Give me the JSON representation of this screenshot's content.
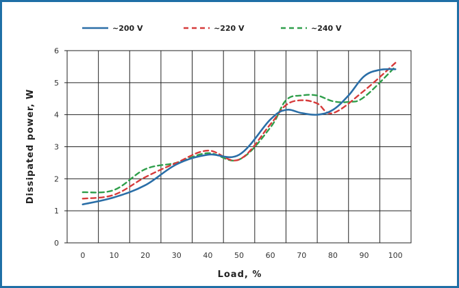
{
  "chart_data": {
    "type": "line",
    "title": "",
    "xlabel": "Load, %",
    "ylabel": "Dissipated power, W",
    "xlim": [
      0,
      100
    ],
    "ylim": [
      0,
      6
    ],
    "xticks": [
      0,
      10,
      20,
      30,
      40,
      50,
      60,
      70,
      80,
      90,
      100
    ],
    "yticks": [
      0,
      1,
      2,
      3,
      4,
      5,
      6
    ],
    "grid": true,
    "legend_position": "top",
    "series": [
      {
        "name": "~200 V",
        "color": "#2a6ea7",
        "dash": "solid",
        "x": [
          0,
          10,
          20,
          30,
          40,
          50,
          60,
          65,
          70,
          75,
          80,
          85,
          90,
          95,
          100
        ],
        "y": [
          1.2,
          1.42,
          1.8,
          2.45,
          2.75,
          2.75,
          3.85,
          4.15,
          4.05,
          4.0,
          4.15,
          4.6,
          5.2,
          5.4,
          5.42
        ]
      },
      {
        "name": "~220 V",
        "color": "#d63a3a",
        "dash": "dashed",
        "x": [
          0,
          10,
          20,
          30,
          40,
          50,
          60,
          65,
          70,
          75,
          80,
          90,
          100
        ],
        "y": [
          1.38,
          1.5,
          2.05,
          2.5,
          2.88,
          2.6,
          3.7,
          4.3,
          4.45,
          4.35,
          4.05,
          4.75,
          5.62
        ]
      },
      {
        "name": "~240 V",
        "color": "#2e9e4a",
        "dash": "dashed",
        "x": [
          0,
          10,
          20,
          30,
          40,
          50,
          60,
          65,
          70,
          75,
          80,
          85,
          90,
          100
        ],
        "y": [
          1.58,
          1.65,
          2.3,
          2.5,
          2.8,
          2.6,
          3.6,
          4.45,
          4.6,
          4.6,
          4.42,
          4.4,
          4.55,
          5.5
        ]
      }
    ]
  }
}
